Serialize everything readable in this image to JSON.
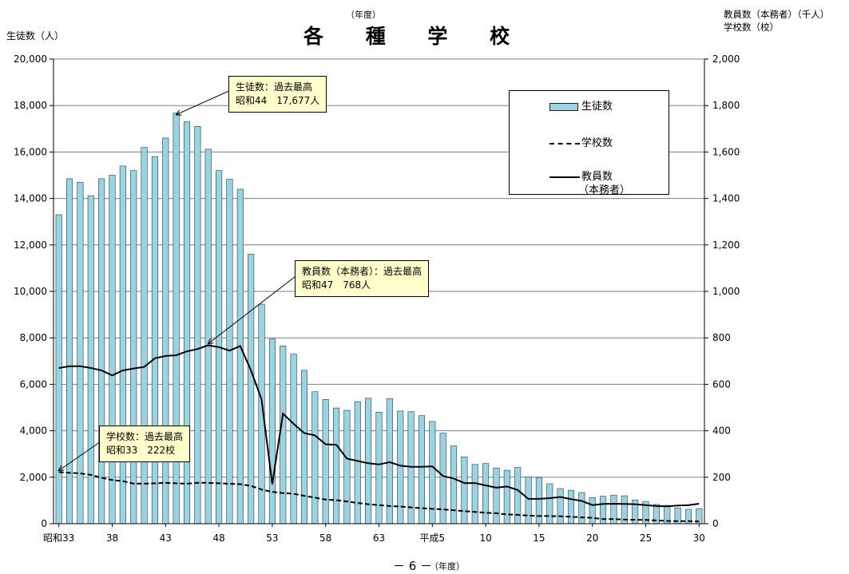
{
  "header": {
    "year_note": "（年度）",
    "title": "各 種 学 校",
    "left_axis_label": "生徒数（人）",
    "right_axis_label_1": "教員数（本務者）（千人）",
    "right_axis_label_2": "学校数（校）"
  },
  "footer": {
    "page_number": "－ 6 －",
    "x_unit": "（年度）"
  },
  "legend": {
    "students": "生徒数",
    "schools": "学校数",
    "teachers_1": "教員数",
    "teachers_2": "（本務者）"
  },
  "callouts": {
    "students": {
      "line1": "生徒数：過去最高",
      "line2": "昭和44　17,677人"
    },
    "teachers": {
      "line1": "教員数（本務者）：過去最高",
      "line2": "昭和47　768人"
    },
    "schools": {
      "line1": "学校数：過去最高",
      "line2": "昭和33　222校"
    }
  },
  "chart_data": {
    "type": "bar",
    "x": [
      "昭和33",
      "昭和34",
      "昭和35",
      "昭和36",
      "昭和37",
      "昭和38",
      "昭和39",
      "昭和40",
      "昭和41",
      "昭和42",
      "昭和43",
      "昭和44",
      "昭和45",
      "昭和46",
      "昭和47",
      "昭和48",
      "昭和49",
      "昭和50",
      "昭和51",
      "昭和52",
      "昭和53",
      "昭和54",
      "昭和55",
      "昭和56",
      "昭和57",
      "昭和58",
      "昭和59",
      "昭和60",
      "昭和61",
      "昭和62",
      "昭和63",
      "平成元",
      "平成2",
      "平成3",
      "平成4",
      "平成5",
      "平成6",
      "平成7",
      "平成8",
      "平成9",
      "平成10",
      "平成11",
      "平成12",
      "平成13",
      "平成14",
      "平成15",
      "平成16",
      "平成17",
      "平成18",
      "平成19",
      "平成20",
      "平成21",
      "平成22",
      "平成23",
      "平成24",
      "平成25",
      "平成26",
      "平成27",
      "平成28",
      "平成29",
      "平成30"
    ],
    "x_tick_labels": [
      "昭和33",
      "38",
      "43",
      "48",
      "53",
      "58",
      "63",
      "平成5",
      "10",
      "15",
      "20",
      "25",
      "30"
    ],
    "left_axis": {
      "ylim": [
        0,
        20000
      ],
      "ticks": [
        "0",
        "2,000",
        "4,000",
        "6,000",
        "8,000",
        "10,000",
        "12,000",
        "14,000",
        "16,000",
        "18,000",
        "20,000"
      ]
    },
    "right_axis": {
      "ylim": [
        0,
        2000
      ],
      "ticks": [
        "0",
        "200",
        "400",
        "600",
        "800",
        "1,000",
        "1,200",
        "1,400",
        "1,600",
        "1,800",
        "2,000"
      ]
    },
    "grid": true,
    "legend_position": "top-right",
    "series": [
      {
        "name": "生徒数",
        "type": "bar",
        "axis": "left",
        "color": "#9cd3e0",
        "values": [
          13300,
          14850,
          14700,
          14120,
          14850,
          15000,
          15400,
          15200,
          16200,
          15800,
          16600,
          17677,
          17300,
          17100,
          16120,
          15200,
          14830,
          14400,
          11600,
          9450,
          7950,
          7650,
          7300,
          6600,
          5680,
          5350,
          4980,
          4880,
          5250,
          5400,
          4800,
          5380,
          4850,
          4820,
          4650,
          4400,
          3900,
          3350,
          2880,
          2550,
          2590,
          2400,
          2300,
          2420,
          2020,
          1990,
          1720,
          1510,
          1440,
          1340,
          1120,
          1180,
          1230,
          1200,
          1020,
          960,
          830,
          790,
          680,
          620,
          650
        ]
      },
      {
        "name": "学校数",
        "type": "line",
        "axis": "right",
        "dash": true,
        "color": "#000000",
        "values": [
          222,
          219,
          217,
          210,
          198,
          188,
          183,
          173,
          172,
          174,
          176,
          174,
          172,
          176,
          176,
          174,
          172,
          170,
          163,
          147,
          137,
          132,
          129,
          120,
          112,
          104,
          101,
          96,
          89,
          84,
          80,
          76,
          74,
          70,
          67,
          64,
          62,
          58,
          54,
          51,
          47,
          45,
          40,
          38,
          35,
          33,
          33,
          32,
          30,
          27,
          25,
          20,
          20,
          18,
          17,
          16,
          14,
          12,
          11,
          11,
          10
        ]
      },
      {
        "name": "教員数\n（本務者）",
        "type": "line",
        "axis": "right",
        "dash": false,
        "color": "#000000",
        "values": [
          670,
          678,
          678,
          670,
          660,
          638,
          660,
          668,
          675,
          712,
          722,
          725,
          742,
          752,
          768,
          760,
          745,
          765,
          660,
          535,
          170,
          474,
          430,
          390,
          380,
          342,
          340,
          280,
          270,
          260,
          255,
          265,
          250,
          245,
          245,
          247,
          205,
          195,
          175,
          175,
          165,
          155,
          160,
          145,
          107,
          107,
          110,
          115,
          106,
          98,
          80,
          85,
          86,
          85,
          84,
          80,
          76,
          75,
          78,
          80,
          86
        ]
      }
    ]
  }
}
